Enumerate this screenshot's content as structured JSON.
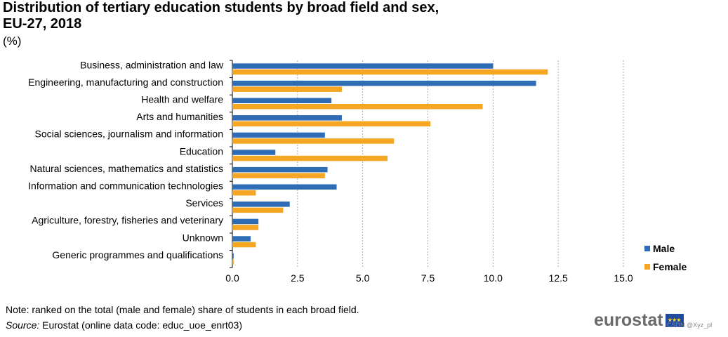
{
  "title_lines": [
    "Distribution of tertiary education students by broad field and sex,",
    "EU-27, 2018"
  ],
  "unit": "(%)",
  "note_text": "Note: ranked on the total (male and female) share of students in each broad field.",
  "source_label": "Source:",
  "source_text": " Eurostat (online data code: educ_uoe_enrt03)",
  "logo_text": "eurostat",
  "flag_icon": "eu-flag-icon",
  "watermark": "CSDN @Xyz_pl",
  "colors": {
    "male": "#2e6db5",
    "female": "#f5a623",
    "grid": "#9a9a9a"
  },
  "chart_data": {
    "type": "bar",
    "orientation": "horizontal",
    "categories": [
      "Business, administration and law",
      "Engineering, manufacturing and construction",
      "Health and welfare",
      "Arts and humanities",
      "Social sciences, journalism and information",
      "Education",
      "Natural sciences, mathematics and statistics",
      "Information and communication technologies",
      "Services",
      "Agriculture, forestry, fisheries and veterinary",
      "Unknown",
      "Generic programmes and qualifications"
    ],
    "series": [
      {
        "name": "Male",
        "values": [
          10.0,
          11.65,
          3.8,
          4.2,
          3.55,
          1.65,
          3.65,
          4.0,
          2.2,
          1.0,
          0.7,
          0.05
        ]
      },
      {
        "name": "Female",
        "values": [
          12.1,
          4.2,
          9.6,
          7.6,
          6.2,
          5.95,
          3.55,
          0.9,
          1.95,
          1.0,
          0.9,
          0.05
        ]
      }
    ],
    "xlim": [
      0,
      15
    ],
    "x_ticks": [
      "0.0",
      "2.5",
      "5.0",
      "7.5",
      "10.0",
      "12.5",
      "15.0"
    ],
    "x_tick_values": [
      0,
      2.5,
      5,
      7.5,
      10,
      12.5,
      15
    ],
    "grid": "vertical dashed",
    "legend_position": "bottom-right"
  }
}
